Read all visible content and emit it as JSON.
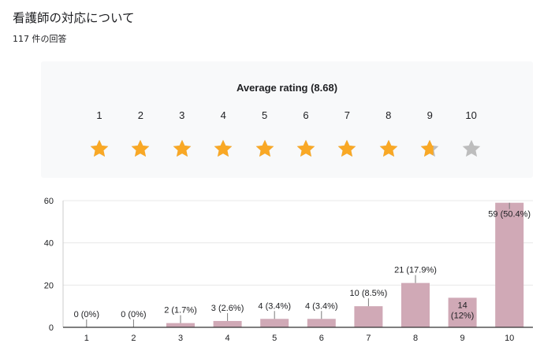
{
  "header": {
    "title": "看護師の対応について",
    "response_count": "117 件の回答"
  },
  "rating": {
    "average_label": "Average rating (8.68)",
    "average": 8.68,
    "max": 10,
    "star_filled_color": "#f9a825",
    "star_empty_color": "#bdbdbd"
  },
  "chart_data": {
    "type": "bar",
    "categories": [
      "1",
      "2",
      "3",
      "4",
      "5",
      "6",
      "7",
      "8",
      "9",
      "10"
    ],
    "values": [
      0,
      0,
      2,
      3,
      4,
      4,
      10,
      21,
      14,
      59
    ],
    "labels": [
      "0 (0%)",
      "0 (0%)",
      "2 (1.7%)",
      "3 (2.6%)",
      "4 (3.4%)",
      "4 (3.4%)",
      "10 (8.5%)",
      "21 (17.9%)",
      "14\n(12%)",
      "59 (50.4%)"
    ],
    "yticks": [
      0,
      20,
      40,
      60
    ],
    "ylim": [
      0,
      60
    ],
    "bar_color": "#d0a9b6",
    "grid": true
  }
}
